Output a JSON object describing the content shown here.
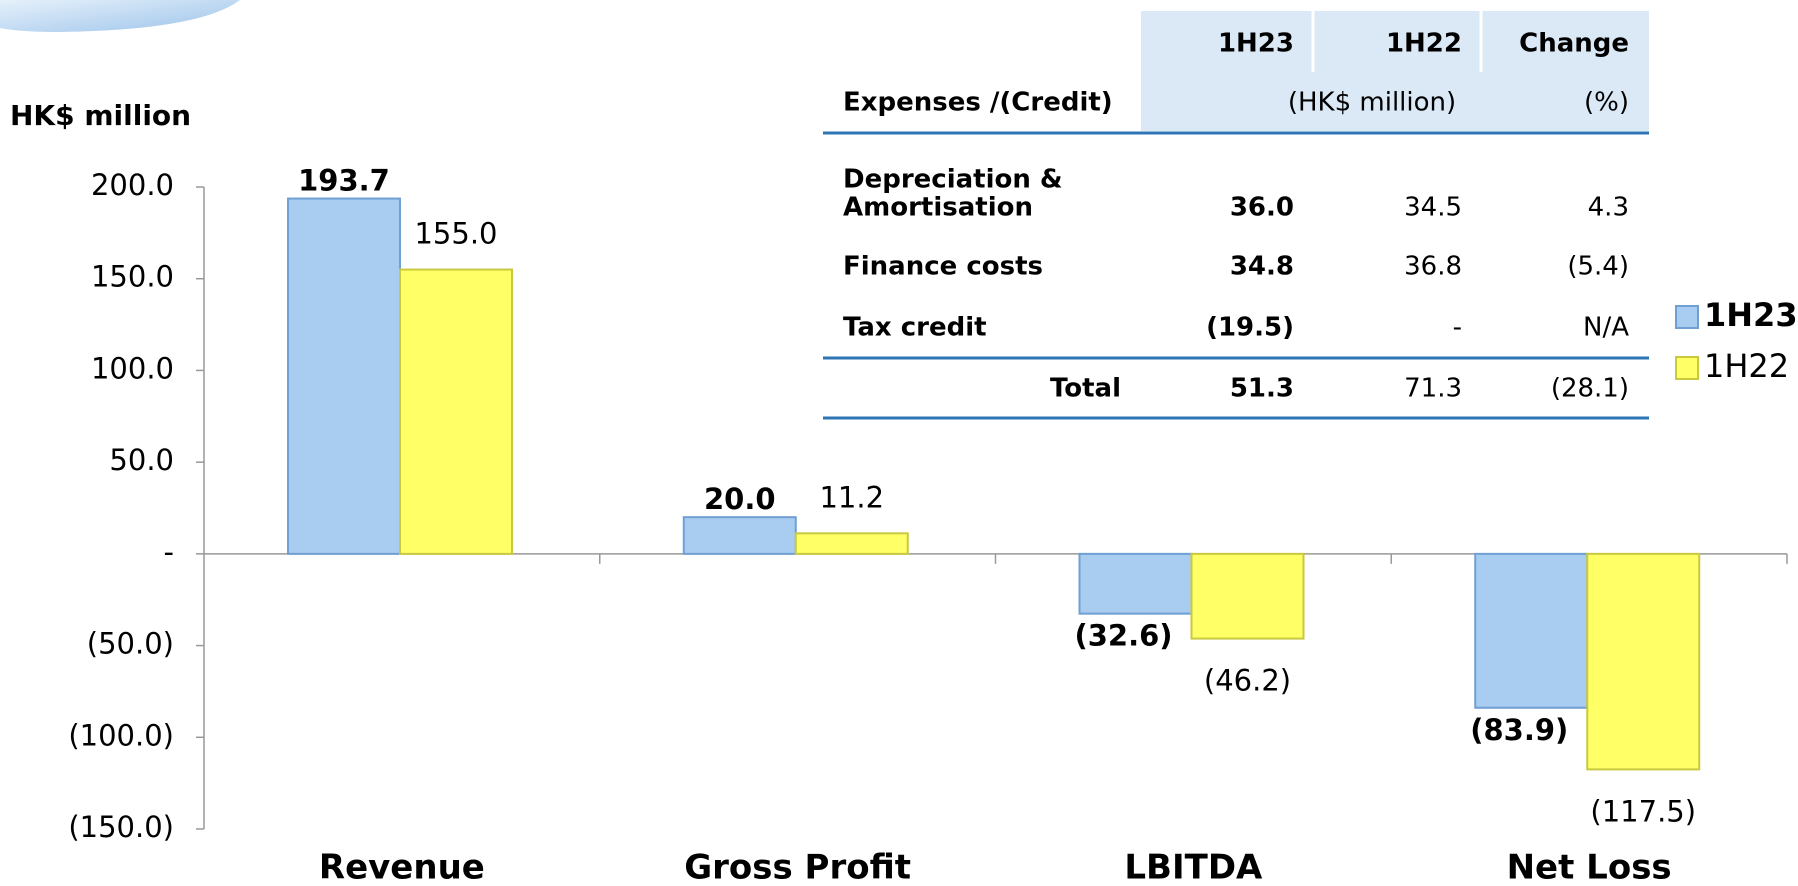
{
  "chart_data": {
    "type": "bar",
    "ylabel": "HK$ million",
    "categories": [
      "Revenue",
      "Gross Profit",
      "LBITDA",
      "Net Loss"
    ],
    "series": [
      {
        "name": "1H23",
        "color": "#a9cdf0",
        "values": [
          193.7,
          20.0,
          -32.6,
          -83.9
        ],
        "value_labels": [
          "193.7",
          "20.0",
          "(32.6)",
          "(83.9)"
        ]
      },
      {
        "name": "1H22",
        "color": "#ffff66",
        "values": [
          155.0,
          11.2,
          -46.2,
          -117.5
        ],
        "value_labels": [
          "155.0",
          "11.2",
          "(46.2)",
          "(117.5)"
        ]
      }
    ],
    "ylim": [
      -150,
      200
    ],
    "yticks": [
      {
        "value": 200,
        "label": "200.0"
      },
      {
        "value": 150,
        "label": "150.0"
      },
      {
        "value": 100,
        "label": "100.0"
      },
      {
        "value": 50,
        "label": "50.0"
      },
      {
        "value": 0,
        "label": "-"
      },
      {
        "value": -50,
        "label": "(50.0)"
      },
      {
        "value": -100,
        "label": "(100.0)"
      },
      {
        "value": -150,
        "label": "(150.0)"
      }
    ],
    "grid": false
  },
  "table": {
    "columns": [
      "1H23",
      "1H22",
      "Change"
    ],
    "subheader": {
      "label": "Expenses /(Credit)",
      "units": [
        "(HK$ million)",
        "(%)"
      ]
    },
    "rows": [
      {
        "label": [
          "Depreciation &",
          "Amortisation"
        ],
        "cells": [
          "36.0",
          "34.5",
          "4.3"
        ]
      },
      {
        "label": [
          "Finance costs"
        ],
        "cells": [
          "34.8",
          "36.8",
          "(5.4)"
        ]
      },
      {
        "label": [
          "Tax credit"
        ],
        "cells": [
          "(19.5)",
          "-",
          "N/A"
        ]
      }
    ],
    "total": {
      "label": "Total",
      "cells": [
        "51.3",
        "71.3",
        "(28.1)"
      ]
    }
  }
}
